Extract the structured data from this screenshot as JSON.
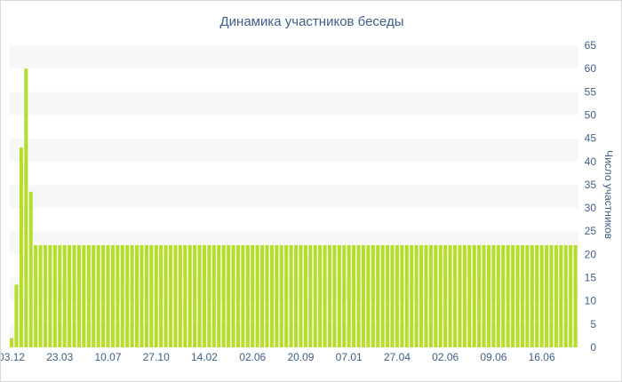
{
  "chart_data": {
    "type": "bar",
    "title": "Динамика участников беседы",
    "xlabel": "",
    "ylabel": "Число участников",
    "ylim": [
      0,
      65
    ],
    "yticks": [
      0,
      5,
      10,
      15,
      20,
      25,
      30,
      35,
      40,
      45,
      50,
      55,
      60,
      65
    ],
    "y_axis_position": "right",
    "grid": "alternating horizontal bands",
    "bar_color": "#b5dd2a",
    "band_color": "#f7f7f7",
    "text_color": "#3e5f8a",
    "x_tick_labels": [
      "03.12",
      "23.03",
      "10.07",
      "27.10",
      "14.02",
      "02.06",
      "20.09",
      "07.01",
      "27.04",
      "02.06",
      "09.06",
      "16.06"
    ],
    "x_tick_bar_index": [
      0,
      10,
      20,
      30,
      40,
      50,
      60,
      70,
      80,
      90,
      100,
      110
    ],
    "values": [
      2,
      13.5,
      43,
      60,
      33.5,
      22,
      22,
      22,
      22,
      22,
      22,
      22,
      22,
      22,
      22,
      22,
      22,
      22,
      22,
      22,
      22,
      22,
      22,
      22,
      22,
      22,
      22,
      22,
      22,
      22,
      22,
      22,
      22,
      22,
      22,
      22,
      22,
      22,
      22,
      22,
      22,
      22,
      22,
      22,
      22,
      22,
      22,
      22,
      22,
      22,
      22,
      22,
      22,
      22,
      22,
      22,
      22,
      22,
      22,
      22,
      22,
      22,
      22,
      22,
      22,
      22,
      22,
      22,
      22,
      22,
      22,
      22,
      22,
      22,
      22,
      22,
      22,
      22,
      22,
      22,
      22,
      22,
      22,
      22,
      22,
      22,
      22,
      22,
      22,
      22,
      22,
      22,
      22,
      22,
      22,
      22,
      22,
      22,
      22,
      22,
      22,
      22,
      22,
      22,
      22,
      22,
      22,
      22,
      22,
      22,
      22,
      22,
      22,
      22,
      22,
      22,
      22,
      22
    ]
  }
}
